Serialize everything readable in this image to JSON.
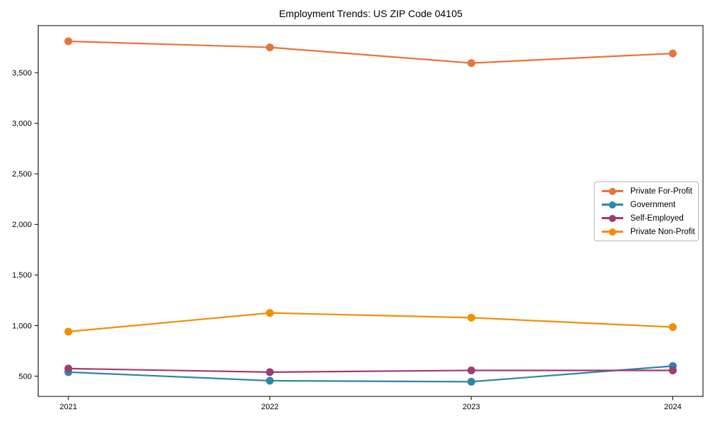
{
  "chart_data": {
    "type": "line",
    "title": "Employment Trends: US ZIP Code 04105",
    "x": [
      2021,
      2022,
      2023,
      2024
    ],
    "x_tick_labels": [
      "2021",
      "2022",
      "2023",
      "2024"
    ],
    "series": [
      {
        "name": "Private For-Profit",
        "color": "#E8743B",
        "values": [
          3810,
          3750,
          3595,
          3690
        ]
      },
      {
        "name": "Government",
        "color": "#2E86AB",
        "values": [
          540,
          455,
          445,
          600
        ]
      },
      {
        "name": "Self-Employed",
        "color": "#A23B72",
        "values": [
          575,
          540,
          557,
          557
        ]
      },
      {
        "name": "Private Non-Profit",
        "color": "#F18F01",
        "values": [
          940,
          1125,
          1078,
          985
        ]
      }
    ],
    "xlabel": "",
    "ylabel": "",
    "xlim": [
      2020.85,
      2024.15
    ],
    "ylim": [
      300,
      3965
    ],
    "yticks": [
      500,
      1000,
      1500,
      2000,
      2500,
      3000,
      3500
    ],
    "grid": false,
    "legend_position": "center-right",
    "marker": "circle",
    "axis_color": "#000000",
    "background_color": "#ffffff"
  }
}
